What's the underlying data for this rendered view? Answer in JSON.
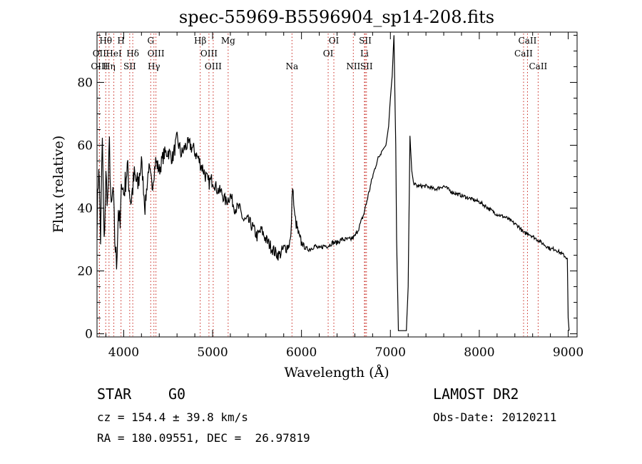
{
  "chart_data": {
    "type": "line",
    "title": "spec-55969-B5596904_sp14-208.fits",
    "xlabel": "Wavelength (Å)",
    "ylabel": "Flux (relative)",
    "xlim": [
      3700,
      9100
    ],
    "ylim": [
      -1,
      96
    ],
    "xticks": [
      4000,
      5000,
      6000,
      7000,
      8000,
      9000
    ],
    "yticks": [
      0,
      20,
      40,
      60,
      80
    ],
    "series": [
      {
        "name": "flux",
        "x": [
          3700,
          3720,
          3740,
          3760,
          3780,
          3800,
          3820,
          3840,
          3860,
          3880,
          3900,
          3920,
          3940,
          3960,
          3980,
          4000,
          4040,
          4080,
          4120,
          4160,
          4200,
          4240,
          4280,
          4320,
          4360,
          4400,
          4450,
          4500,
          4550,
          4600,
          4650,
          4700,
          4750,
          4800,
          4850,
          4900,
          4950,
          5000,
          5050,
          5100,
          5150,
          5200,
          5250,
          5300,
          5350,
          5400,
          5450,
          5500,
          5550,
          5600,
          5650,
          5700,
          5750,
          5800,
          5850,
          5880,
          5900,
          5920,
          5940,
          5980,
          6050,
          6100,
          6150,
          6200,
          6250,
          6300,
          6350,
          6400,
          6450,
          6500,
          6550,
          6600,
          6650,
          6700,
          6750,
          6800,
          6850,
          6900,
          6950,
          6980,
          7000,
          7020,
          7040,
          7060,
          7070,
          7090,
          7110,
          7130,
          7150,
          7180,
          7200,
          7220,
          7240,
          7260,
          7300,
          7400,
          7500,
          7600,
          7700,
          7800,
          7900,
          8000,
          8100,
          8200,
          8300,
          8400,
          8450,
          8500,
          8550,
          8600,
          8650,
          8700,
          8750,
          8800,
          8850,
          8900,
          8950,
          8990,
          9000,
          9010
        ],
        "y": [
          35,
          55,
          30,
          62,
          28,
          50,
          42,
          60,
          38,
          46,
          30,
          22,
          40,
          33,
          50,
          44,
          53,
          42,
          50,
          47,
          55,
          40,
          53,
          47,
          55,
          52,
          57,
          58,
          56,
          62,
          57,
          60,
          60,
          58,
          55,
          52,
          48,
          49,
          46,
          45,
          42,
          44,
          40,
          40,
          36,
          36,
          34,
          31,
          33,
          30,
          28,
          26,
          25,
          27,
          28,
          30,
          48,
          38,
          35,
          30,
          27,
          27,
          28,
          27,
          28,
          28,
          29,
          29,
          30,
          30,
          30,
          31,
          34,
          38,
          44,
          50,
          55,
          58,
          60,
          66,
          75,
          82,
          95,
          60,
          30,
          1,
          1,
          1,
          1,
          1,
          15,
          63,
          52,
          48,
          47,
          47,
          46,
          47,
          45,
          44,
          43,
          42,
          40,
          38,
          37,
          35,
          34,
          32,
          32,
          31,
          30,
          29,
          28,
          27,
          27,
          26,
          25,
          24,
          5,
          1
        ]
      }
    ],
    "lines": [
      {
        "name": "Hθ",
        "x": 3798,
        "row": 0
      },
      {
        "name": "H",
        "x": 3970,
        "row": 0
      },
      {
        "name": "G",
        "x": 4304,
        "row": 0
      },
      {
        "name": "Hβ",
        "x": 4861,
        "row": 0
      },
      {
        "name": "Mg",
        "x": 5175,
        "row": 0
      },
      {
        "name": "OI",
        "x": 6364,
        "row": 0
      },
      {
        "name": "SII",
        "x": 6717,
        "row": 0
      },
      {
        "name": "CaII",
        "x": 8542,
        "row": 0
      },
      {
        "name": "OII",
        "x": 3727,
        "row": 1
      },
      {
        "name": "HeI",
        "x": 3889,
        "row": 1
      },
      {
        "name": "Hδ",
        "x": 4102,
        "row": 1
      },
      {
        "name": "OIII",
        "x": 4363,
        "row": 1
      },
      {
        "name": "OIII",
        "x": 4959,
        "row": 1
      },
      {
        "name": "OI",
        "x": 6300,
        "row": 1
      },
      {
        "name": "Li",
        "x": 6708,
        "row": 1
      },
      {
        "name": "CaII",
        "x": 8498,
        "row": 1
      },
      {
        "name": "OIII",
        "x": 3727,
        "row": 2
      },
      {
        "name": "Hη",
        "x": 3835,
        "row": 2
      },
      {
        "name": "SII",
        "x": 4068,
        "row": 2
      },
      {
        "name": "Hγ",
        "x": 4340,
        "row": 2
      },
      {
        "name": "OIII",
        "x": 5007,
        "row": 2
      },
      {
        "name": "Na",
        "x": 5893,
        "row": 2
      },
      {
        "name": "NII",
        "x": 6583,
        "row": 2
      },
      {
        "name": "SII",
        "x": 6731,
        "row": 2
      },
      {
        "name": "CaII",
        "x": 8662,
        "row": 2
      }
    ]
  },
  "footer": {
    "class_label": "STAR",
    "subclass_label": "G0",
    "survey": "LAMOST DR2",
    "cz": "cz = 154.4 ± 39.8 km/s",
    "obs_date": "Obs-Date: 20120211",
    "coords": "RA = 180.09551, DEC =  26.97819"
  }
}
